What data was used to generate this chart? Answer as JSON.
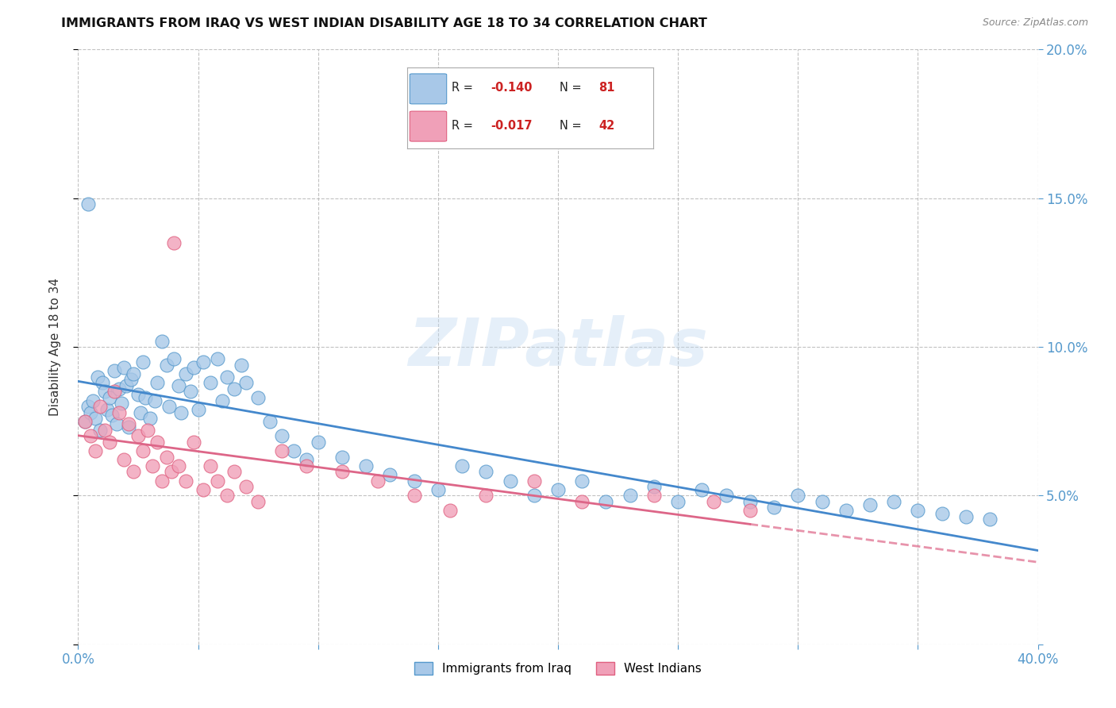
{
  "title": "IMMIGRANTS FROM IRAQ VS WEST INDIAN DISABILITY AGE 18 TO 34 CORRELATION CHART",
  "source": "Source: ZipAtlas.com",
  "ylabel": "Disability Age 18 to 34",
  "xlim": [
    0.0,
    0.4
  ],
  "ylim": [
    0.0,
    0.2
  ],
  "xtick_vals": [
    0.0,
    0.05,
    0.1,
    0.15,
    0.2,
    0.25,
    0.3,
    0.35,
    0.4
  ],
  "ytick_vals": [
    0.0,
    0.05,
    0.1,
    0.15,
    0.2
  ],
  "iraq_color": "#a8c8e8",
  "west_color": "#f0a0b8",
  "iraq_edge_color": "#5599cc",
  "west_edge_color": "#e06080",
  "iraq_line_color": "#4488cc",
  "west_line_color": "#dd6688",
  "watermark_text": "ZIPatlas",
  "legend_R1": "R = ",
  "legend_V1": "-0.140",
  "legend_N1": "N = ",
  "legend_NV1": "81",
  "legend_R2": "R = ",
  "legend_V2": "-0.017",
  "legend_N2": "N = ",
  "legend_NV2": "42",
  "iraq_x": [
    0.003,
    0.004,
    0.005,
    0.006,
    0.007,
    0.008,
    0.009,
    0.01,
    0.011,
    0.012,
    0.013,
    0.014,
    0.015,
    0.016,
    0.017,
    0.018,
    0.019,
    0.02,
    0.021,
    0.022,
    0.023,
    0.025,
    0.026,
    0.027,
    0.028,
    0.03,
    0.032,
    0.033,
    0.035,
    0.037,
    0.038,
    0.04,
    0.042,
    0.043,
    0.045,
    0.047,
    0.048,
    0.05,
    0.052,
    0.055,
    0.058,
    0.06,
    0.062,
    0.065,
    0.068,
    0.07,
    0.075,
    0.08,
    0.085,
    0.09,
    0.095,
    0.1,
    0.11,
    0.12,
    0.13,
    0.14,
    0.15,
    0.16,
    0.17,
    0.18,
    0.19,
    0.2,
    0.21,
    0.22,
    0.23,
    0.24,
    0.25,
    0.26,
    0.27,
    0.28,
    0.29,
    0.3,
    0.31,
    0.32,
    0.33,
    0.34,
    0.35,
    0.36,
    0.37,
    0.38,
    0.004
  ],
  "iraq_y": [
    0.075,
    0.08,
    0.078,
    0.082,
    0.076,
    0.09,
    0.072,
    0.088,
    0.085,
    0.079,
    0.083,
    0.077,
    0.092,
    0.074,
    0.086,
    0.081,
    0.093,
    0.087,
    0.073,
    0.089,
    0.091,
    0.084,
    0.078,
    0.095,
    0.083,
    0.076,
    0.082,
    0.088,
    0.102,
    0.094,
    0.08,
    0.096,
    0.087,
    0.078,
    0.091,
    0.085,
    0.093,
    0.079,
    0.095,
    0.088,
    0.096,
    0.082,
    0.09,
    0.086,
    0.094,
    0.088,
    0.083,
    0.075,
    0.07,
    0.065,
    0.062,
    0.068,
    0.063,
    0.06,
    0.057,
    0.055,
    0.052,
    0.06,
    0.058,
    0.055,
    0.05,
    0.052,
    0.055,
    0.048,
    0.05,
    0.053,
    0.048,
    0.052,
    0.05,
    0.048,
    0.046,
    0.05,
    0.048,
    0.045,
    0.047,
    0.048,
    0.045,
    0.044,
    0.043,
    0.042,
    0.148
  ],
  "west_x": [
    0.003,
    0.005,
    0.007,
    0.009,
    0.011,
    0.013,
    0.015,
    0.017,
    0.019,
    0.021,
    0.023,
    0.025,
    0.027,
    0.029,
    0.031,
    0.033,
    0.035,
    0.037,
    0.039,
    0.042,
    0.045,
    0.048,
    0.052,
    0.055,
    0.058,
    0.062,
    0.065,
    0.07,
    0.075,
    0.085,
    0.095,
    0.11,
    0.125,
    0.14,
    0.155,
    0.17,
    0.19,
    0.21,
    0.24,
    0.265,
    0.28,
    0.04
  ],
  "west_y": [
    0.075,
    0.07,
    0.065,
    0.08,
    0.072,
    0.068,
    0.085,
    0.078,
    0.062,
    0.074,
    0.058,
    0.07,
    0.065,
    0.072,
    0.06,
    0.068,
    0.055,
    0.063,
    0.058,
    0.06,
    0.055,
    0.068,
    0.052,
    0.06,
    0.055,
    0.05,
    0.058,
    0.053,
    0.048,
    0.065,
    0.06,
    0.058,
    0.055,
    0.05,
    0.045,
    0.05,
    0.055,
    0.048,
    0.05,
    0.048,
    0.045,
    0.135
  ]
}
